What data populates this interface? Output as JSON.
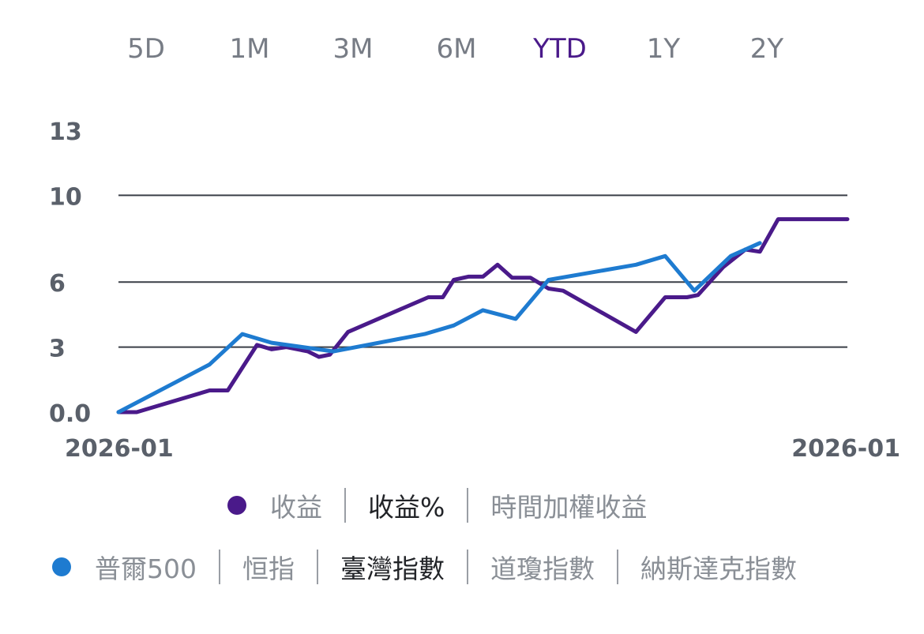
{
  "time_ranges": {
    "options": [
      "5D",
      "1M",
      "3M",
      "6M",
      "YTD",
      "1Y",
      "2Y"
    ],
    "selected": "YTD"
  },
  "colors": {
    "portfolio": "#4a1a8a",
    "benchmark": "#1e7bd0",
    "grid": "#3a3f47",
    "axis_text": "#5a606a",
    "muted_text": "#8a8f96",
    "selected_text": "#222428"
  },
  "chart_data": {
    "type": "line",
    "yticks": [
      "0.0",
      "3",
      "6",
      "10",
      "13"
    ],
    "ylim": [
      0,
      13
    ],
    "xlim": [
      0,
      100
    ],
    "x_start_label": "2026-01",
    "x_end_label": "2026-01",
    "grid": "horizontal at 3, 6, 10",
    "series": [
      {
        "color": "#4a1a8a",
        "points": [
          [
            0,
            0
          ],
          [
            2.5,
            0
          ],
          [
            12.5,
            1
          ],
          [
            15,
            1
          ],
          [
            19,
            3.1
          ],
          [
            21,
            2.9
          ],
          [
            23,
            3.0
          ],
          [
            26,
            2.8
          ],
          [
            27.5,
            2.55
          ],
          [
            29,
            2.65
          ],
          [
            31.5,
            3.7
          ],
          [
            42.5,
            5.3
          ],
          [
            44.5,
            5.3
          ],
          [
            46,
            6.1
          ],
          [
            48,
            6.25
          ],
          [
            50,
            6.25
          ],
          [
            52,
            6.8
          ],
          [
            54,
            6.2
          ],
          [
            56.5,
            6.2
          ],
          [
            59,
            5.7
          ],
          [
            61,
            5.6
          ],
          [
            71,
            3.7
          ],
          [
            75,
            5.3
          ],
          [
            78,
            5.3
          ],
          [
            79.5,
            5.4
          ],
          [
            83,
            6.7
          ],
          [
            86,
            7.5
          ],
          [
            88,
            7.4
          ],
          [
            90.5,
            8.9
          ],
          [
            96,
            8.9
          ],
          [
            100,
            8.9
          ]
        ]
      },
      {
        "color": "#1e7bd0",
        "points": [
          [
            0,
            0
          ],
          [
            12.5,
            2.2
          ],
          [
            17,
            3.6
          ],
          [
            21,
            3.2
          ],
          [
            29.5,
            2.8
          ],
          [
            42,
            3.6
          ],
          [
            46,
            4.0
          ],
          [
            50,
            4.7
          ],
          [
            54.5,
            4.3
          ],
          [
            59,
            6.1
          ],
          [
            71,
            6.8
          ],
          [
            75,
            7.2
          ],
          [
            79,
            5.6
          ],
          [
            84,
            7.2
          ],
          [
            88,
            7.8
          ]
        ]
      }
    ]
  },
  "legend": {
    "row1": {
      "options": [
        "收益",
        "收益%",
        "時間加權收益"
      ],
      "selected": "收益%"
    },
    "row2": {
      "options": [
        "普爾500",
        "恒指",
        "臺灣指數",
        "道瓊指數",
        "納斯達克指數"
      ],
      "selected": "臺灣指數"
    }
  }
}
